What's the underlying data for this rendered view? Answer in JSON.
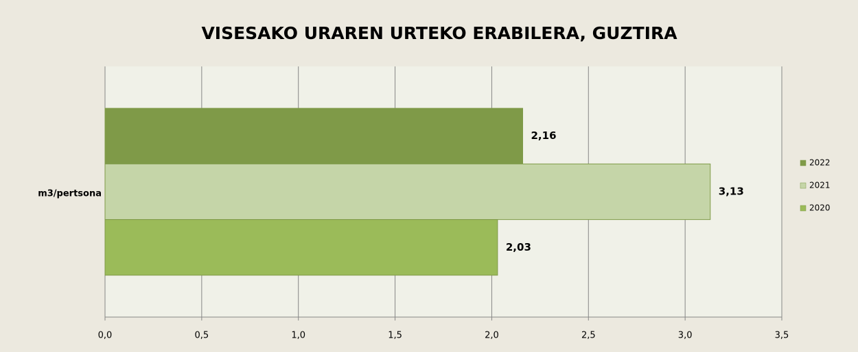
{
  "chart_data": {
    "type": "barh",
    "title": "VISESAKO URAREN URTEKO ERABILERA, GUZTIRA",
    "categories": [
      "m3/pertsona"
    ],
    "series": [
      {
        "name": "2022",
        "color": "#7f9a48",
        "values": [
          2.16
        ],
        "value_labels": [
          "2,16"
        ]
      },
      {
        "name": "2021",
        "color": "#c5d5a8",
        "values": [
          3.13
        ],
        "value_labels": [
          "3,13"
        ]
      },
      {
        "name": "2020",
        "color": "#9bbb59",
        "values": [
          2.03
        ],
        "value_labels": [
          "2,03"
        ]
      }
    ],
    "xlim": [
      0,
      3.5
    ],
    "xticks": [
      {
        "value": 0,
        "label": "0,0"
      },
      {
        "value": 0.5,
        "label": "0,5"
      },
      {
        "value": 1,
        "label": "1,0"
      },
      {
        "value": 1.5,
        "label": "1,5"
      },
      {
        "value": 2,
        "label": "2,0"
      },
      {
        "value": 2.5,
        "label": "2,5"
      },
      {
        "value": 3,
        "label": "3,0"
      },
      {
        "value": 3.5,
        "label": "3,5"
      }
    ],
    "grid": true,
    "legend": "right"
  }
}
